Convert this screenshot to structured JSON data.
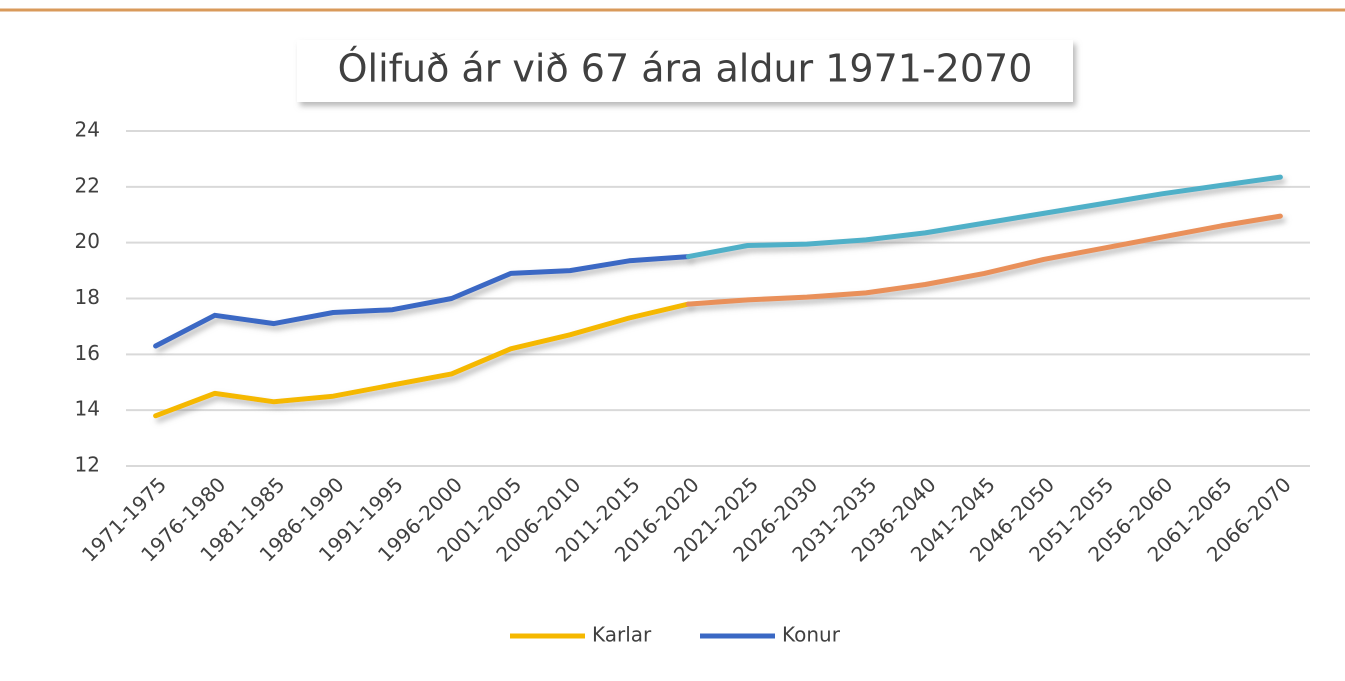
{
  "chart_data": {
    "type": "line",
    "title": "Ólifuð ár við 67 ára aldur 1971-2070",
    "categories": [
      "1971-1975",
      "1976-1980",
      "1981-1985",
      "1986-1990",
      "1991-1995",
      "1996-2000",
      "2001-2005",
      "2006-2010",
      "2011-2015",
      "2016-2020",
      "2021-2025",
      "2026-2030",
      "2031-2035",
      "2036-2040",
      "2041-2045",
      "2046-2050",
      "2051-2055",
      "2056-2060",
      "2061-2065",
      "2066-2070"
    ],
    "series": [
      {
        "name": "Karlar",
        "color": "#f5b800",
        "projected_color": "#e9905a",
        "values": [
          13.8,
          14.6,
          14.3,
          14.5,
          14.9,
          15.3,
          16.2,
          16.7,
          17.3,
          17.8,
          17.95,
          18.05,
          18.2,
          18.5,
          18.9,
          19.4,
          19.8,
          20.2,
          20.6,
          20.95
        ]
      },
      {
        "name": "Konur",
        "color": "#3a68c4",
        "projected_color": "#4fb0c8",
        "values": [
          16.3,
          17.4,
          17.1,
          17.5,
          17.6,
          18.0,
          18.9,
          19.0,
          19.35,
          19.5,
          19.9,
          19.95,
          20.1,
          20.35,
          20.7,
          21.05,
          21.4,
          21.75,
          22.05,
          22.35
        ]
      }
    ],
    "projected_from_index": 9,
    "ylim": [
      12,
      24
    ],
    "yticks": [
      12,
      14,
      16,
      18,
      20,
      22,
      24
    ],
    "grid": true,
    "legend": "bottom"
  }
}
